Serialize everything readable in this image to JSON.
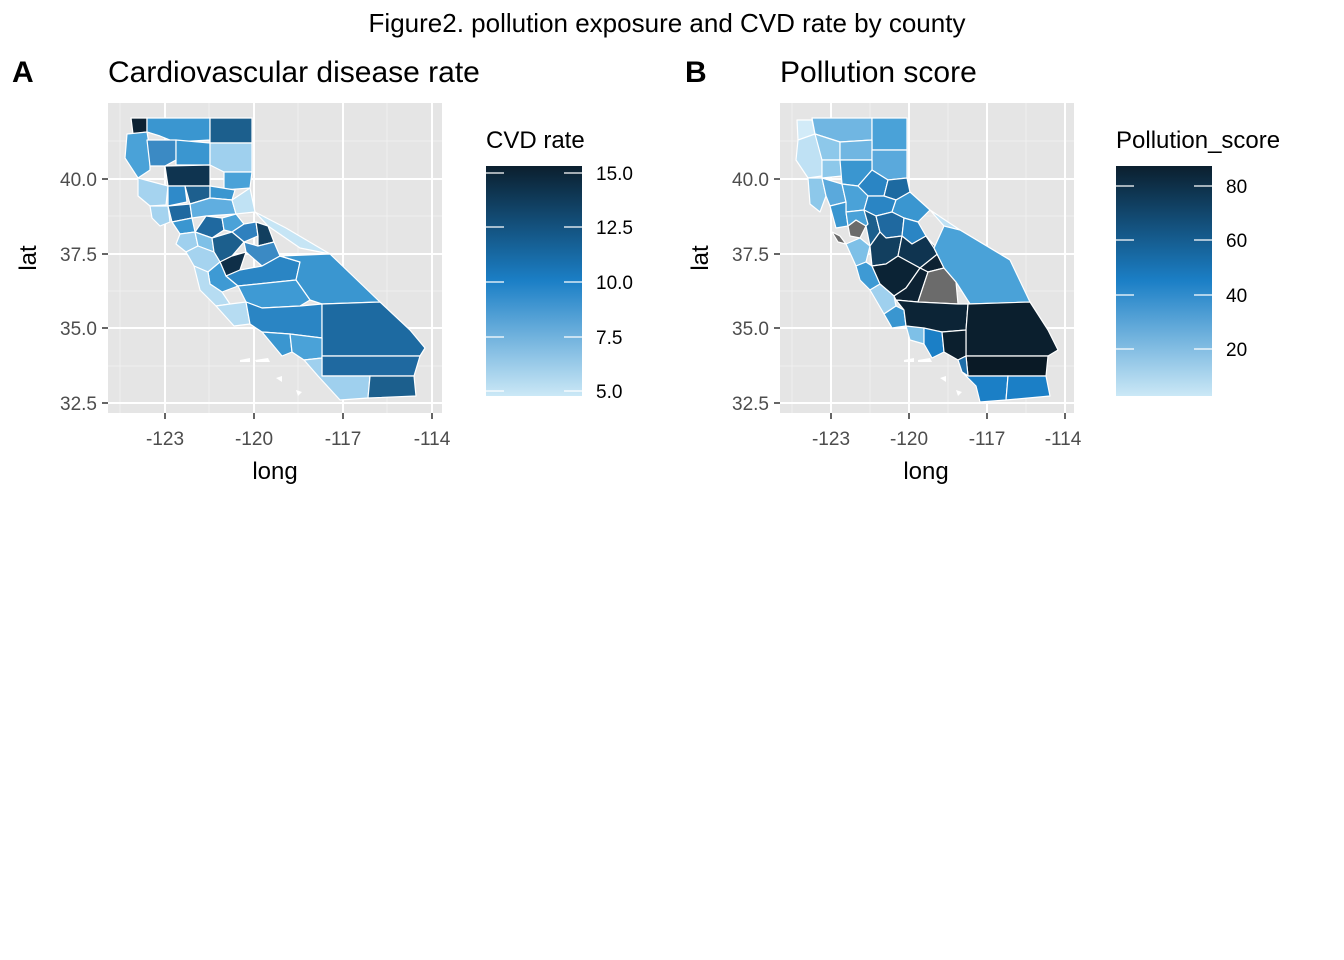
{
  "figure_title": "Figure2. pollution exposure and CVD rate by county",
  "colors": {
    "panel_bg": "#e5e5e5",
    "grid_major": "#ffffff",
    "grid_minor": "#f0f0f0",
    "county_border": "#ffffff",
    "missing": "#6b6b6b",
    "scale_low": "#c9e7f6",
    "scale_mid": "#1b7fc6",
    "scale_high": "#0a1d2b"
  },
  "panels": [
    {
      "tag": "A",
      "title": "Cardiovascular disease rate",
      "xlabel": "long",
      "ylabel": "lat",
      "x_ticks": [
        "-123",
        "-120",
        "-117",
        "-114"
      ],
      "y_ticks": [
        "40.0",
        "37.5",
        "35.0",
        "32.5"
      ],
      "legend": {
        "title": "CVD rate",
        "breaks": [
          "15.0",
          "12.5",
          "10.0",
          "7.5",
          "5.0"
        ]
      }
    },
    {
      "tag": "B",
      "title": "Pollution score",
      "xlabel": "long",
      "ylabel": "lat",
      "x_ticks": [
        "-123",
        "-120",
        "-117",
        "-114"
      ],
      "y_ticks": [
        "40.0",
        "37.5",
        "35.0",
        "32.5"
      ],
      "legend": {
        "title": "Pollution_score",
        "breaks": [
          "80",
          "60",
          "40",
          "20"
        ]
      }
    }
  ]
}
